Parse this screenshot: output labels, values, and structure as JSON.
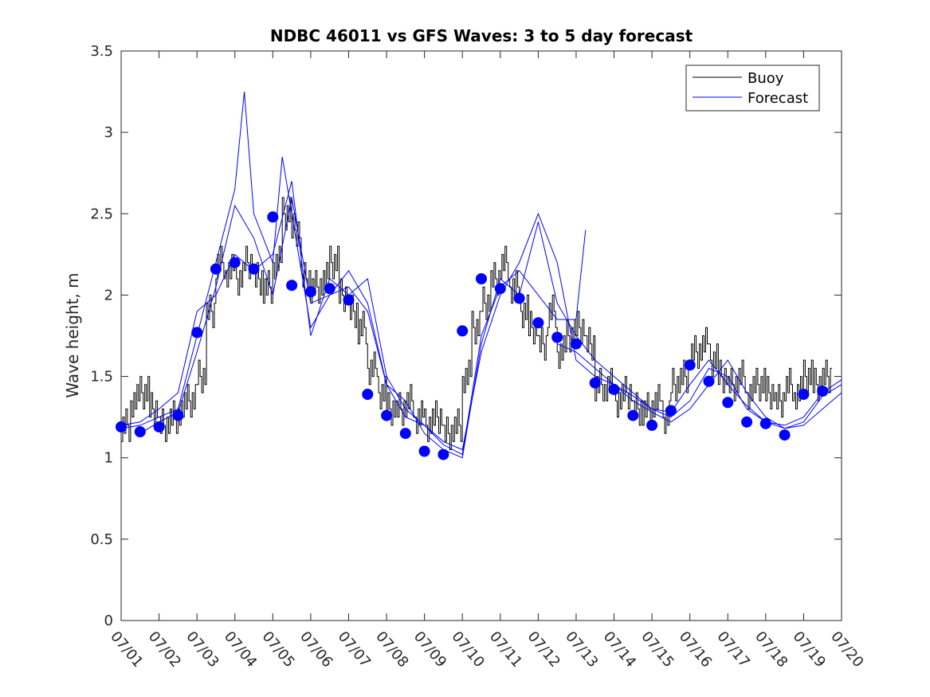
{
  "chart_data": {
    "type": "line",
    "title": "NDBC 46011 vs GFS Waves: 3 to 5 day forecast",
    "xlabel": "",
    "ylabel": "Wave height, m",
    "xlim": [
      "07/01",
      "07/20"
    ],
    "ylim": [
      0,
      3.5
    ],
    "grid": false,
    "legend_position": "top-right",
    "x_tick_labels": [
      "07/01",
      "07/02",
      "07/03",
      "07/04",
      "07/05",
      "07/06",
      "07/07",
      "07/08",
      "07/09",
      "07/10",
      "07/11",
      "07/12",
      "07/13",
      "07/14",
      "07/15",
      "07/16",
      "07/17",
      "07/18",
      "07/19",
      "07/20"
    ],
    "y_tick_labels": [
      "0",
      "0.5",
      "1",
      "1.5",
      "2",
      "2.5",
      "3",
      "3.5"
    ],
    "y_ticks": [
      0,
      0.5,
      1,
      1.5,
      2,
      2.5,
      3,
      3.5
    ],
    "series": [
      {
        "name": "Buoy",
        "color": "#000000",
        "style": "thin-line",
        "x": [
          "07/01 00:00",
          "07/01 06:00",
          "07/01 12:00",
          "07/01 18:00",
          "07/02 00:00",
          "07/02 06:00",
          "07/02 12:00",
          "07/02 18:00",
          "07/03 00:00",
          "07/03 06:00",
          "07/03 12:00",
          "07/03 18:00",
          "07/04 00:00",
          "07/04 06:00",
          "07/04 12:00",
          "07/04 18:00",
          "07/05 00:00",
          "07/05 06:00",
          "07/05 12:00",
          "07/05 18:00",
          "07/06 00:00",
          "07/06 06:00",
          "07/06 12:00",
          "07/06 18:00",
          "07/07 00:00",
          "07/07 06:00",
          "07/07 12:00",
          "07/07 18:00",
          "07/08 00:00",
          "07/08 06:00",
          "07/08 12:00",
          "07/08 18:00",
          "07/09 00:00",
          "07/09 06:00",
          "07/09 12:00",
          "07/09 18:00",
          "07/10 00:00",
          "07/10 06:00",
          "07/10 12:00",
          "07/10 18:00",
          "07/11 00:00",
          "07/11 06:00",
          "07/11 12:00",
          "07/11 18:00",
          "07/12 00:00",
          "07/12 06:00",
          "07/12 12:00",
          "07/12 18:00",
          "07/13 00:00",
          "07/13 06:00",
          "07/13 12:00",
          "07/13 18:00",
          "07/14 00:00",
          "07/14 06:00",
          "07/14 12:00",
          "07/14 18:00",
          "07/15 00:00",
          "07/15 06:00",
          "07/15 12:00",
          "07/15 18:00",
          "07/16 00:00",
          "07/16 06:00",
          "07/16 12:00",
          "07/16 18:00",
          "07/17 00:00",
          "07/17 06:00",
          "07/17 12:00",
          "07/17 18:00",
          "07/18 00:00",
          "07/18 06:00",
          "07/18 12:00",
          "07/18 18:00",
          "07/19 00:00",
          "07/19 06:00",
          "07/19 12:00"
        ],
        "y": [
          1.2,
          1.35,
          1.4,
          1.3,
          1.2,
          1.25,
          1.3,
          1.35,
          1.5,
          1.9,
          2.2,
          2.15,
          2.1,
          2.2,
          2.1,
          2.05,
          2.2,
          2.5,
          2.4,
          2.1,
          2.05,
          2.1,
          2.2,
          2.0,
          1.9,
          1.8,
          1.55,
          1.4,
          1.3,
          1.3,
          1.35,
          1.25,
          1.2,
          1.25,
          1.15,
          1.2,
          1.5,
          1.8,
          1.95,
          2.1,
          2.2,
          2.05,
          1.9,
          1.8,
          1.7,
          1.9,
          1.65,
          1.75,
          1.8,
          1.7,
          1.45,
          1.45,
          1.35,
          1.4,
          1.3,
          1.3,
          1.35,
          1.25,
          1.45,
          1.5,
          1.65,
          1.7,
          1.6,
          1.5,
          1.45,
          1.5,
          1.4,
          1.45,
          1.4,
          1.35,
          1.45,
          1.4,
          1.5,
          1.45,
          1.5
        ]
      },
      {
        "name": "Forecast",
        "color": "#0000ff",
        "style": "thin-line",
        "runs": [
          {
            "x": [
              "07/01 00:00",
              "07/01 12:00",
              "07/02 00:00",
              "07/02 12:00",
              "07/03 00:00",
              "07/03 12:00",
              "07/04 00:00",
              "07/04 06:00",
              "07/04 12:00",
              "07/05 00:00",
              "07/05 06:00",
              "07/05 12:00",
              "07/06 00:00",
              "07/06 12:00",
              "07/07 00:00",
              "07/07 12:00",
              "07/08 00:00",
              "07/08 12:00",
              "07/09 00:00",
              "07/09 12:00",
              "07/10 00:00",
              "07/10 12:00",
              "07/11 00:00",
              "07/11 12:00",
              "07/12 00:00",
              "07/12 12:00",
              "07/13 00:00",
              "07/13 12:00",
              "07/14 00:00",
              "07/14 12:00",
              "07/15 00:00",
              "07/15 12:00",
              "07/16 00:00",
              "07/16 12:00",
              "07/17 00:00",
              "07/17 12:00",
              "07/18 00:00",
              "07/18 12:00",
              "07/19 00:00",
              "07/19 12:00",
              "07/20 00:00"
            ],
            "y": [
              1.18,
              1.2,
              1.25,
              1.3,
              1.75,
              2.2,
              2.65,
              3.25,
              2.5,
              2.2,
              2.85,
              2.5,
              1.8,
              2.0,
              2.05,
              1.9,
              1.45,
              1.35,
              1.15,
              1.05,
              1.0,
              1.7,
              2.1,
              2.0,
              2.45,
              1.95,
              1.75,
              1.6,
              1.5,
              1.4,
              1.3,
              1.25,
              1.35,
              1.55,
              1.5,
              1.3,
              1.22,
              1.2,
              1.25,
              1.4,
              1.48
            ]
          },
          {
            "x": [
              "07/01 00:00",
              "07/01 12:00",
              "07/02 00:00",
              "07/02 12:00",
              "07/03 00:00",
              "07/03 12:00",
              "07/04 00:00",
              "07/04 12:00",
              "07/05 00:00",
              "07/05 12:00",
              "07/06 00:00",
              "07/06 12:00",
              "07/07 00:00",
              "07/07 12:00",
              "07/08 00:00",
              "07/08 12:00",
              "07/09 00:00",
              "07/09 12:00",
              "07/10 00:00",
              "07/10 12:00",
              "07/11 00:00",
              "07/11 12:00",
              "07/12 00:00",
              "07/12 12:00",
              "07/13 00:00",
              "07/13 12:00",
              "07/14 00:00",
              "07/14 12:00",
              "07/15 00:00",
              "07/15 12:00",
              "07/16 00:00",
              "07/16 12:00",
              "07/17 00:00",
              "07/17 12:00",
              "07/18 00:00",
              "07/18 12:00",
              "07/19 00:00",
              "07/19 12:00",
              "07/20 00:00"
            ],
            "y": [
              1.2,
              1.22,
              1.3,
              1.4,
              1.9,
              2.0,
              2.25,
              2.15,
              2.25,
              2.7,
              1.75,
              2.1,
              2.0,
              2.1,
              1.5,
              1.3,
              1.2,
              1.1,
              1.05,
              1.65,
              2.0,
              2.2,
              2.5,
              2.2,
              1.6,
              1.5,
              1.45,
              1.35,
              1.28,
              1.22,
              1.3,
              1.45,
              1.6,
              1.4,
              1.25,
              1.18,
              1.2,
              1.3,
              1.4
            ]
          },
          {
            "x": [
              "07/01 12:00",
              "07/02 00:00",
              "07/02 12:00",
              "07/03 00:00",
              "07/03 12:00",
              "07/04 00:00",
              "07/04 12:00",
              "07/05 00:00",
              "07/05 12:00",
              "07/06 00:00",
              "07/06 12:00",
              "07/07 00:00",
              "07/07 12:00",
              "07/08 00:00",
              "07/08 12:00",
              "07/09 00:00",
              "07/09 12:00",
              "07/10 00:00",
              "07/10 12:00",
              "07/11 00:00",
              "07/11 12:00",
              "07/12 00:00",
              "07/12 12:00",
              "07/13 00:00",
              "07/13 06:00"
            ],
            "y": [
              1.15,
              1.22,
              1.28,
              1.65,
              2.05,
              2.55,
              2.35,
              2.0,
              2.6,
              1.95,
              2.0,
              2.15,
              1.95,
              1.45,
              1.25,
              1.2,
              1.08,
              1.02,
              1.75,
              2.05,
              2.15,
              2.0,
              1.85,
              1.85,
              2.4
            ]
          },
          {
            "x": [
              "07/12 12:00",
              "07/13 00:00",
              "07/13 12:00",
              "07/14 00:00",
              "07/14 12:00",
              "07/15 00:00",
              "07/15 12:00",
              "07/16 00:00",
              "07/16 12:00",
              "07/17 00:00",
              "07/17 12:00",
              "07/18 00:00",
              "07/18 12:00",
              "07/19 00:00",
              "07/19 12:00",
              "07/20 00:00"
            ],
            "y": [
              1.7,
              1.65,
              1.55,
              1.45,
              1.38,
              1.3,
              1.28,
              1.45,
              1.6,
              1.45,
              1.32,
              1.22,
              1.18,
              1.22,
              1.38,
              1.45
            ]
          }
        ]
      },
      {
        "name": "",
        "color": "#0000ff",
        "style": "filled-circle-markers",
        "x": [
          "07/01 00:00",
          "07/01 12:00",
          "07/02 00:00",
          "07/02 12:00",
          "07/03 00:00",
          "07/03 12:00",
          "07/04 00:00",
          "07/04 12:00",
          "07/05 00:00",
          "07/05 12:00",
          "07/06 00:00",
          "07/06 12:00",
          "07/07 00:00",
          "07/07 12:00",
          "07/08 00:00",
          "07/08 12:00",
          "07/09 00:00",
          "07/09 12:00",
          "07/10 00:00",
          "07/10 12:00",
          "07/11 00:00",
          "07/11 12:00",
          "07/12 00:00",
          "07/12 12:00",
          "07/13 00:00",
          "07/13 12:00",
          "07/14 00:00",
          "07/14 12:00",
          "07/15 00:00",
          "07/15 12:00",
          "07/16 00:00",
          "07/16 12:00",
          "07/17 00:00",
          "07/17 12:00",
          "07/18 00:00",
          "07/18 12:00",
          "07/19 00:00",
          "07/19 12:00"
        ],
        "y": [
          1.19,
          1.16,
          1.19,
          1.26,
          1.77,
          2.16,
          2.2,
          2.16,
          2.48,
          2.06,
          2.02,
          2.04,
          1.97,
          1.39,
          1.26,
          1.15,
          1.04,
          1.02,
          1.78,
          2.1,
          2.04,
          1.98,
          1.83,
          1.74,
          1.7,
          1.46,
          1.42,
          1.26,
          1.2,
          1.29,
          1.57,
          1.47,
          1.34,
          1.22,
          1.21,
          1.14,
          1.39,
          1.41
        ]
      }
    ]
  }
}
